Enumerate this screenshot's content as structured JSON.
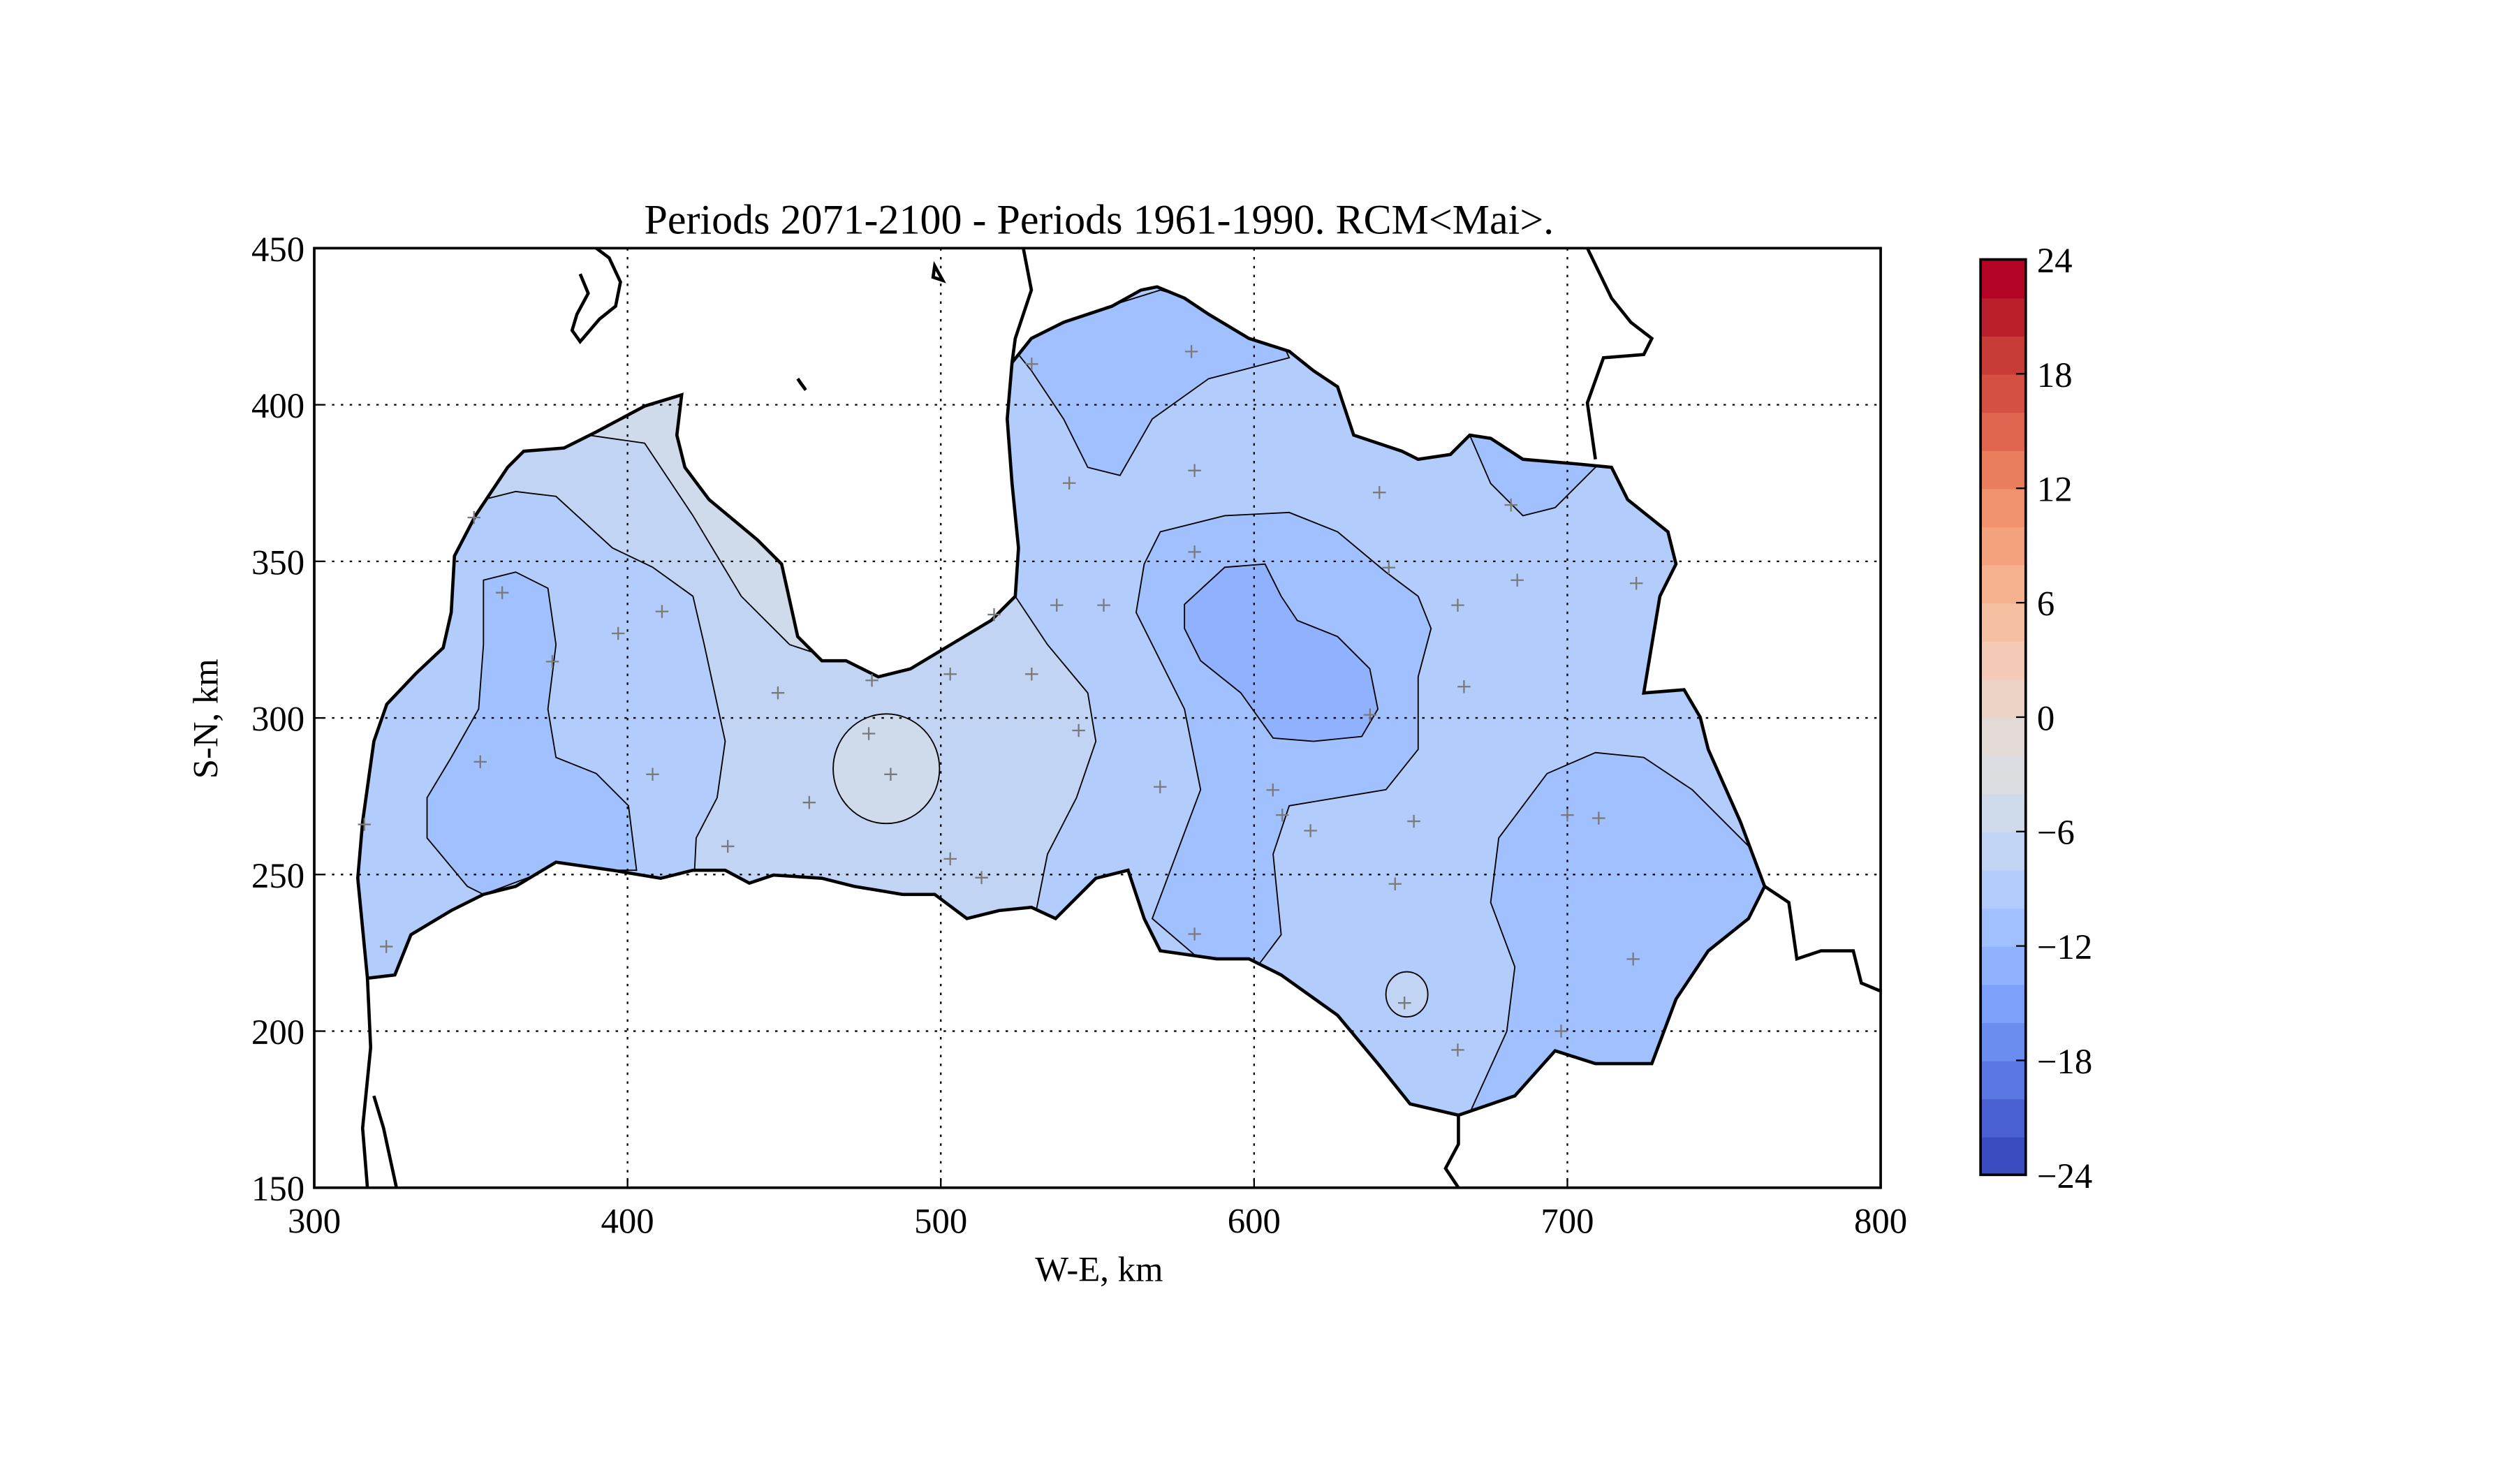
{
  "chart_data": {
    "type": "heatmap",
    "subtype": "filled-contour-map",
    "title": "Periods 2071-2100 - Periods 1961-1990. RCM<Mai>.",
    "xlabel": "W-E, km",
    "ylabel": "S-N, km",
    "xlim": [
      300,
      800
    ],
    "ylim": [
      150,
      450
    ],
    "xticks": [
      "300",
      "400",
      "500",
      "600",
      "700",
      "800"
    ],
    "yticks": [
      "150",
      "200",
      "250",
      "300",
      "350",
      "400",
      "450"
    ],
    "grid": true,
    "contour_levels_shown": [
      -12,
      -10,
      -8,
      -6,
      -4,
      -2
    ],
    "region_levels": {
      "grey_band": "-4..-2",
      "light_band": "-6..-4",
      "mid_band": "-8..-6",
      "dark_band": "-10..-8",
      "darkest_band": "-12..-10"
    },
    "colorbar": {
      "min": -24,
      "max": 24,
      "step": 2,
      "tick_labels": [
        "24",
        "18",
        "12",
        "6",
        "0",
        "−6",
        "−12",
        "−18",
        "−24"
      ],
      "colors": [
        "#3b4cc0",
        "#4961d2",
        "#5a78e4",
        "#6b8df0",
        "#7da0fa",
        "#8fb1fe",
        "#a1c0ff",
        "#b2ccfb",
        "#c1d4f4",
        "#cfdaea",
        "#dadce0",
        "#e1dad6",
        "#ebd3c6",
        "#f2cab5",
        "#f5bfa1",
        "#f6b18f",
        "#f4a27d",
        "#f0926b",
        "#ea7d5c",
        "#e0654f",
        "#d55042",
        "#c73c36",
        "#ba1f2c",
        "#b40426"
      ]
    },
    "stations": [
      [
        360,
        340
      ],
      [
        376,
        318
      ],
      [
        353,
        286
      ],
      [
        397,
        327
      ],
      [
        411,
        334
      ],
      [
        408,
        282
      ],
      [
        432,
        259
      ],
      [
        448,
        308
      ],
      [
        458,
        273
      ],
      [
        478,
        312
      ],
      [
        477,
        295
      ],
      [
        484,
        282
      ],
      [
        503,
        314
      ],
      [
        503,
        255
      ],
      [
        513,
        249
      ],
      [
        517,
        333
      ],
      [
        529,
        314
      ],
      [
        544,
        296
      ],
      [
        537,
        336
      ],
      [
        541,
        375
      ],
      [
        552,
        336
      ],
      [
        570,
        278
      ],
      [
        580,
        417
      ],
      [
        581,
        379
      ],
      [
        581,
        353
      ],
      [
        581,
        231
      ],
      [
        606,
        277
      ],
      [
        609,
        269
      ],
      [
        618,
        264
      ],
      [
        640,
        372
      ],
      [
        643,
        348
      ],
      [
        637,
        301
      ],
      [
        645,
        247
      ],
      [
        651,
        267
      ],
      [
        648,
        209
      ],
      [
        665,
        194
      ],
      [
        665,
        336
      ],
      [
        667,
        310
      ],
      [
        682,
        368
      ],
      [
        684,
        344
      ],
      [
        700,
        269
      ],
      [
        710,
        268
      ],
      [
        721,
        223
      ],
      [
        722,
        343
      ],
      [
        323,
        227
      ],
      [
        316,
        266
      ],
      [
        351,
        364
      ],
      [
        529,
        413
      ],
      [
        698,
        200
      ]
    ]
  }
}
